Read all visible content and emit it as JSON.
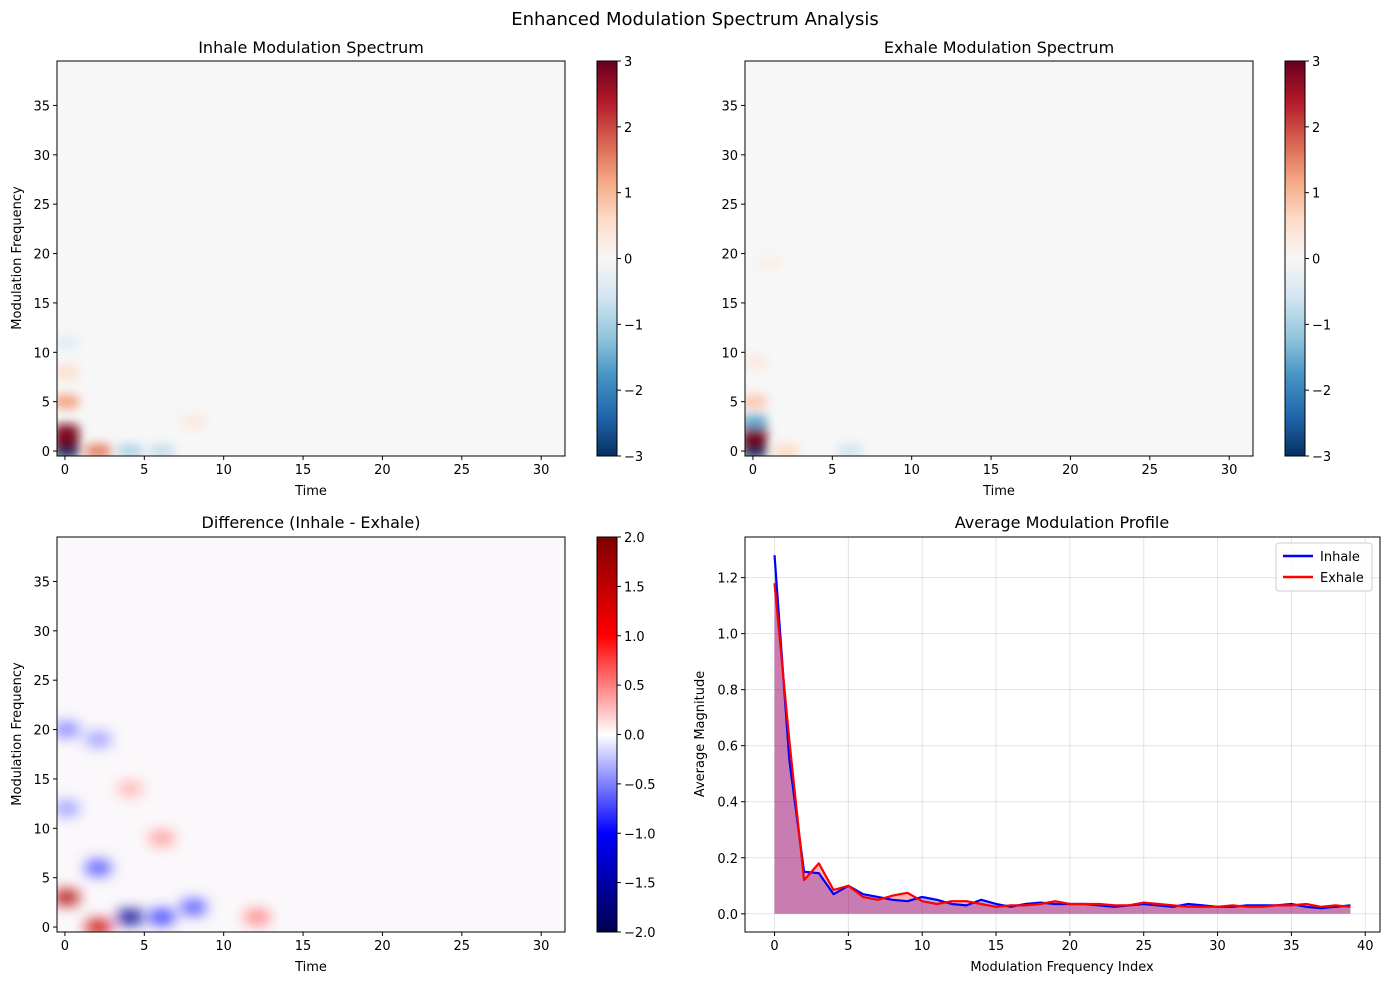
{
  "figure": {
    "suptitle": "Enhanced Modulation Spectrum Analysis"
  },
  "chart_data": [
    {
      "type": "heatmap",
      "title": "Inhale Modulation Spectrum",
      "xlabel": "Time",
      "ylabel": "Modulation Frequency",
      "xlim": [
        -0.5,
        31.5
      ],
      "ylim": [
        -0.5,
        39.5
      ],
      "xticks": [
        0,
        5,
        10,
        15,
        20,
        25,
        30
      ],
      "yticks": [
        0,
        5,
        10,
        15,
        20,
        25,
        30,
        35
      ],
      "colormap": "RdBu_r",
      "colorbar": {
        "min": -3,
        "max": 3,
        "ticks": [
          -3,
          -2,
          -1,
          0,
          1,
          2,
          3
        ]
      },
      "features": [
        {
          "x": 0,
          "y": 0,
          "value": -3
        },
        {
          "x": 0,
          "y": 1,
          "value": 3
        },
        {
          "x": 0,
          "y": 2,
          "value": 2.8
        },
        {
          "x": 0,
          "y": 5,
          "value": 1.2
        },
        {
          "x": 0,
          "y": 8,
          "value": 0.5
        },
        {
          "x": 2,
          "y": 0,
          "value": 1.5
        },
        {
          "x": 4,
          "y": 0,
          "value": -0.9
        },
        {
          "x": 6,
          "y": 0,
          "value": -0.7
        },
        {
          "x": 0,
          "y": 11,
          "value": -0.3
        },
        {
          "x": 8,
          "y": 3,
          "value": 0.3
        }
      ]
    },
    {
      "type": "heatmap",
      "title": "Exhale Modulation Spectrum",
      "xlabel": "Time",
      "ylabel": "",
      "xlim": [
        -0.5,
        31.5
      ],
      "ylim": [
        -0.5,
        39.5
      ],
      "xticks": [
        0,
        5,
        10,
        15,
        20,
        25,
        30
      ],
      "yticks": [
        0,
        5,
        10,
        15,
        20,
        25,
        30,
        35
      ],
      "colormap": "RdBu_r",
      "colorbar": {
        "min": -3,
        "max": 3,
        "ticks": [
          -3,
          -2,
          -1,
          0,
          1,
          2,
          3
        ]
      },
      "features": [
        {
          "x": 0,
          "y": 0,
          "value": -3
        },
        {
          "x": 0,
          "y": 1,
          "value": 3
        },
        {
          "x": 0,
          "y": 2,
          "value": 2.8
        },
        {
          "x": 0,
          "y": 3,
          "value": -1.5
        },
        {
          "x": 0,
          "y": 5,
          "value": 0.8
        },
        {
          "x": 2,
          "y": 0,
          "value": 0.6
        },
        {
          "x": 6,
          "y": 0,
          "value": -0.6
        },
        {
          "x": 0,
          "y": 9,
          "value": 0.3
        },
        {
          "x": 1,
          "y": 19,
          "value": 0.2
        }
      ]
    },
    {
      "type": "heatmap",
      "title": "Difference (Inhale - Exhale)",
      "xlabel": "Time",
      "ylabel": "Modulation Frequency",
      "xlim": [
        -0.5,
        31.5
      ],
      "ylim": [
        -0.5,
        39.5
      ],
      "xticks": [
        0,
        5,
        10,
        15,
        20,
        25,
        30
      ],
      "yticks": [
        0,
        5,
        10,
        15,
        20,
        25,
        30,
        35
      ],
      "colormap": "seismic",
      "colorbar": {
        "min": -2.0,
        "max": 2.0,
        "ticks": [
          -2.0,
          -1.5,
          -1.0,
          -0.5,
          0.0,
          0.5,
          1.0,
          1.5,
          2.0
        ]
      },
      "features": [
        {
          "x": 0,
          "y": 3,
          "value": 1.6
        },
        {
          "x": 2,
          "y": 0,
          "value": 1.4
        },
        {
          "x": 4,
          "y": 1,
          "value": -1.6
        },
        {
          "x": 2,
          "y": 6,
          "value": -0.7
        },
        {
          "x": 6,
          "y": 1,
          "value": -0.8
        },
        {
          "x": 8,
          "y": 2,
          "value": -0.7
        },
        {
          "x": 0,
          "y": 20,
          "value": -0.5
        },
        {
          "x": 2,
          "y": 19,
          "value": -0.4
        },
        {
          "x": 0,
          "y": 12,
          "value": -0.4
        },
        {
          "x": 6,
          "y": 9,
          "value": 0.4
        },
        {
          "x": 4,
          "y": 14,
          "value": 0.3
        },
        {
          "x": 12,
          "y": 1,
          "value": 0.5
        }
      ]
    },
    {
      "type": "line",
      "title": "Average Modulation Profile",
      "xlabel": "Modulation Frequency Index",
      "ylabel": "Average Magnitude",
      "xlim": [
        -2,
        41
      ],
      "ylim": [
        -0.065,
        1.345
      ],
      "xticks": [
        0,
        5,
        10,
        15,
        20,
        25,
        30,
        35,
        40
      ],
      "yticks": [
        0.0,
        0.2,
        0.4,
        0.6,
        0.8,
        1.0,
        1.2
      ],
      "grid": true,
      "legend": "top-right",
      "x": [
        0,
        1,
        2,
        3,
        4,
        5,
        6,
        7,
        8,
        9,
        10,
        11,
        12,
        13,
        14,
        15,
        16,
        17,
        18,
        19,
        20,
        21,
        22,
        23,
        24,
        25,
        26,
        27,
        28,
        29,
        30,
        31,
        32,
        33,
        34,
        35,
        36,
        37,
        38,
        39
      ],
      "series": [
        {
          "name": "Inhale",
          "color": "#0000ff",
          "values": [
            1.28,
            0.55,
            0.15,
            0.145,
            0.07,
            0.1,
            0.07,
            0.06,
            0.05,
            0.045,
            0.06,
            0.05,
            0.035,
            0.03,
            0.05,
            0.035,
            0.025,
            0.035,
            0.04,
            0.035,
            0.035,
            0.035,
            0.03,
            0.025,
            0.03,
            0.035,
            0.03,
            0.025,
            0.035,
            0.03,
            0.025,
            0.025,
            0.03,
            0.03,
            0.03,
            0.035,
            0.025,
            0.02,
            0.025,
            0.03
          ]
        },
        {
          "name": "Exhale",
          "color": "#ff0000",
          "values": [
            1.18,
            0.62,
            0.12,
            0.18,
            0.085,
            0.1,
            0.06,
            0.05,
            0.065,
            0.075,
            0.045,
            0.035,
            0.045,
            0.045,
            0.035,
            0.025,
            0.03,
            0.03,
            0.035,
            0.045,
            0.035,
            0.035,
            0.035,
            0.03,
            0.03,
            0.04,
            0.035,
            0.03,
            0.025,
            0.025,
            0.025,
            0.03,
            0.025,
            0.025,
            0.03,
            0.03,
            0.035,
            0.025,
            0.03,
            0.025
          ]
        }
      ]
    }
  ]
}
